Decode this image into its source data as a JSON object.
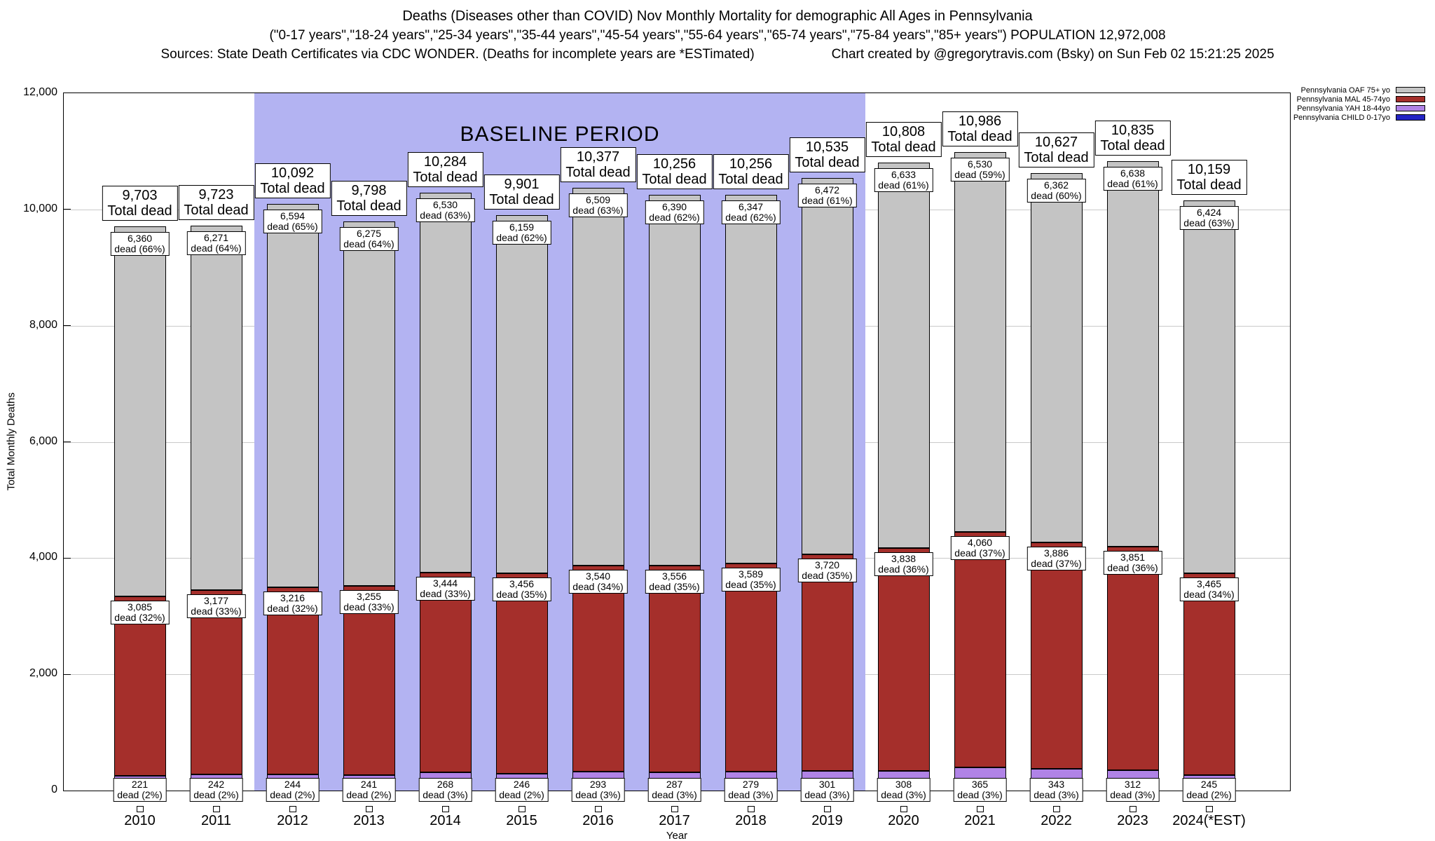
{
  "chart_data": {
    "type": "bar",
    "stacked": true,
    "title": "Deaths (Diseases other than COVID) Nov Monthly Mortality for demographic All Ages in Pennsylvania",
    "subtitle": "(\"0-17 years\",\"18-24 years\",\"25-34 years\",\"35-44 years\",\"45-54 years\",\"55-64 years\",\"65-74 years\",\"75-84 years\",\"85+ years\") POPULATION 12,972,008",
    "source_note": "Sources: State Death Certificates via CDC WONDER. (Deaths for incomplete years are *ESTimated)",
    "credit": "Chart created by @gregorytravis.com (Bsky) on Sun Feb 02 15:21:25 2025",
    "xlabel": "Year",
    "ylabel": "Total Monthly Deaths",
    "ylim": [
      0,
      12000
    ],
    "yticks": [
      0,
      2000,
      4000,
      6000,
      8000,
      10000,
      12000
    ],
    "grid": true,
    "legend_position": "top-right",
    "categories": [
      "2010",
      "2011",
      "2012",
      "2013",
      "2014",
      "2015",
      "2016",
      "2017",
      "2018",
      "2019",
      "2020",
      "2021",
      "2022",
      "2023",
      "2024(*EST)"
    ],
    "totals": [
      9703,
      9723,
      10092,
      9798,
      10284,
      9901,
      10377,
      10256,
      10256,
      10535,
      10808,
      10986,
      10627,
      10835,
      10159
    ],
    "total_label_suffix": "Total dead",
    "segment_label_word": "dead",
    "baseline": {
      "label": "BASELINE PERIOD",
      "from_index": 2,
      "to_index": 9,
      "color": "#b3b3f2"
    },
    "series": [
      {
        "name": "Pennsylvania OAF 75+ yo",
        "color": "#c4c4c4",
        "values": [
          6360,
          6271,
          6594,
          6275,
          6530,
          6159,
          6509,
          6390,
          6347,
          6472,
          6633,
          6530,
          6362,
          6638,
          6424
        ],
        "pcts": [
          66,
          64,
          65,
          64,
          63,
          62,
          63,
          62,
          62,
          61,
          61,
          59,
          60,
          61,
          63
        ]
      },
      {
        "name": "Pennsylvania MAL 45-74yo",
        "color": "#a52f2b",
        "values": [
          3085,
          3177,
          3216,
          3255,
          3444,
          3456,
          3540,
          3556,
          3589,
          3720,
          3838,
          4060,
          3886,
          3851,
          3465
        ],
        "pcts": [
          32,
          33,
          32,
          33,
          33,
          35,
          34,
          35,
          35,
          35,
          36,
          37,
          37,
          36,
          34
        ]
      },
      {
        "name": "Pennsylvania YAH 18-44yo",
        "color": "#b083e6",
        "values": [
          221,
          242,
          244,
          241,
          268,
          246,
          293,
          287,
          279,
          301,
          308,
          365,
          343,
          312,
          245
        ],
        "pcts": [
          2,
          2,
          2,
          2,
          3,
          2,
          3,
          3,
          3,
          3,
          3,
          3,
          3,
          3,
          2
        ]
      },
      {
        "name": "Pennsylvania CHILD 0-17yo",
        "color": "#2424c4",
        "values": null
      }
    ]
  }
}
